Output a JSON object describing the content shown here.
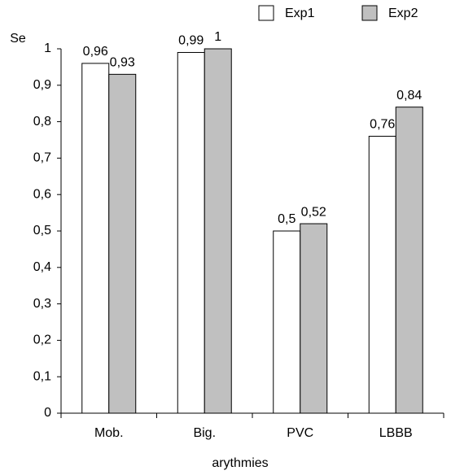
{
  "chart_data": {
    "type": "bar",
    "y_label": "Se",
    "x_label": "arythmies",
    "categories": [
      "Mob.",
      "Big.",
      "PVC",
      "LBBB"
    ],
    "series": [
      {
        "name": "Exp1",
        "color": "#ffffff",
        "values": [
          0.96,
          0.99,
          0.5,
          0.76
        ],
        "value_labels": [
          "0,96",
          "0,99",
          "0,5",
          "0,76"
        ]
      },
      {
        "name": "Exp2",
        "color": "#c0c0c0",
        "values": [
          0.93,
          1,
          0.52,
          0.84
        ],
        "value_labels": [
          "0,93",
          "1",
          "0,52",
          "0,84"
        ]
      }
    ],
    "ylim": [
      0,
      1
    ],
    "yticks": [
      0,
      {
        "value": 0.1,
        "label": "0,1"
      },
      {
        "value": 0.2,
        "label": "0,2"
      },
      {
        "value": 0.3,
        "label": "0,3"
      },
      {
        "value": 0.4,
        "label": "0,4"
      },
      {
        "value": 0.5,
        "label": "0,5"
      },
      {
        "value": 0.6,
        "label": "0,6"
      },
      {
        "value": 0.7,
        "label": "0,7"
      },
      {
        "value": 0.8,
        "label": "0,8"
      },
      {
        "value": 0.9,
        "label": "0,9"
      },
      1
    ],
    "grid": false
  }
}
